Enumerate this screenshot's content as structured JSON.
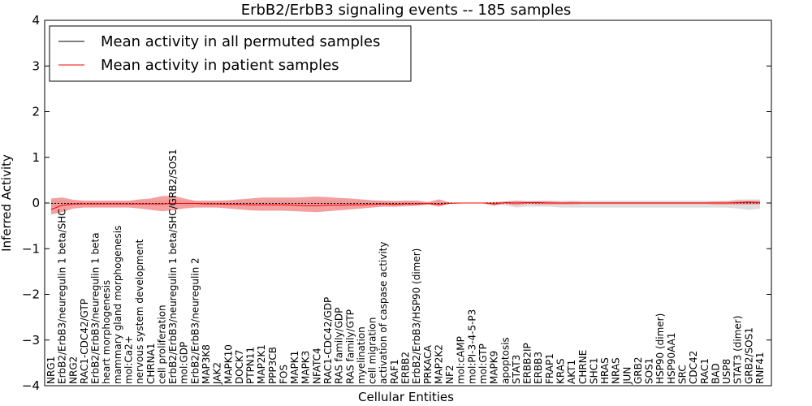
{
  "chart_data": {
    "type": "line",
    "title": "ErbB2/ErbB3 signaling events -- 185 samples",
    "xlabel": "Cellular Entities",
    "ylabel": "Inferred Activity",
    "ylim": [
      -4,
      4
    ],
    "yticks": [
      -4,
      -3,
      -2,
      -1,
      0,
      1,
      2,
      3,
      4
    ],
    "grid": false,
    "legend_position": "top-left",
    "categories": [
      "NRG1",
      "ErbB2/ErbB3/neuregulin 1 beta/SHC",
      "NRG2",
      "RAC1-CDC42/GTP",
      "ErbB2/ErbB3/neuregulin 1 beta",
      "heart morphogenesis",
      "mammary gland morphogenesis",
      "mol:Ca2+",
      "nervous system development",
      "CHRNA1",
      "cell proliferation",
      "ErbB2/ErbB3/neuregulin 1 beta/SHC/GRB2/SOS1",
      "mol:GDP",
      "ErbB2/ErbB3/neuregulin 2",
      "MAP3K8",
      "JAK2",
      "MAPK10",
      "DOCK7",
      "PTPN11",
      "MAP2K1",
      "PPP3CB",
      "FOS",
      "MAPK1",
      "MAPK3",
      "NFATC4",
      "RAC1-CDC42/GDP",
      "RAS family/GDP",
      "RAS family/GTP",
      "myelination",
      "cell migration",
      "activation of caspase activity",
      "RAF1",
      "ERBB2",
      "ErbB2/ErbB3/HSP90 (dimer)",
      "PRKACA",
      "MAP2K2",
      "NF2",
      "mol:cAMP",
      "mol:PI-3-4-5-P3",
      "mol:GTP",
      "MAPK9",
      "apoptosis",
      "STAT3",
      "ERBB2IP",
      "ERBB3",
      "FRAP1",
      "KRAS",
      "AKT1",
      "CHRNE",
      "SHC1",
      "HRAS",
      "NRAS",
      "JUN",
      "GRB2",
      "SOS1",
      "HSP90 (dimer)",
      "HSP90AA1",
      "SRC",
      "CDC42",
      "RAC1",
      "BAD",
      "USP8",
      "STAT3 (dimer)",
      "GRB2/SOS1",
      "RNF41"
    ],
    "series": [
      {
        "name": "Mean activity in all permuted samples",
        "color": "#000000",
        "band_color": "#c8c8c8",
        "values": [
          -0.01,
          -0.01,
          -0.01,
          -0.01,
          -0.01,
          -0.01,
          -0.01,
          -0.01,
          -0.01,
          -0.01,
          -0.01,
          -0.01,
          -0.01,
          -0.01,
          -0.01,
          -0.01,
          -0.01,
          -0.01,
          -0.01,
          -0.01,
          -0.01,
          -0.01,
          -0.01,
          -0.01,
          -0.01,
          -0.01,
          -0.01,
          -0.01,
          -0.01,
          -0.01,
          -0.01,
          -0.01,
          -0.01,
          -0.01,
          -0.01,
          -0.01,
          0.0,
          0.0,
          0.0,
          0.0,
          0.0,
          0.0,
          0.0,
          0.0,
          0.0,
          0.0,
          0.0,
          0.0,
          0.0,
          0.0,
          0.0,
          0.0,
          0.0,
          0.0,
          0.0,
          0.0,
          0.0,
          0.0,
          0.0,
          0.0,
          0.0,
          0.0,
          0.0,
          0.0,
          0.0
        ],
        "upper": [
          0.05,
          0.05,
          0.05,
          0.05,
          0.05,
          0.05,
          0.05,
          0.05,
          0.05,
          0.05,
          0.05,
          0.05,
          0.05,
          0.05,
          0.05,
          0.05,
          0.05,
          0.05,
          0.05,
          0.05,
          0.05,
          0.05,
          0.05,
          0.05,
          0.05,
          0.05,
          0.05,
          0.05,
          0.05,
          0.05,
          0.05,
          0.05,
          0.05,
          0.05,
          0.02,
          0.02,
          0.01,
          0.01,
          0.01,
          0.01,
          0.01,
          0.03,
          0.05,
          0.05,
          0.05,
          0.05,
          0.05,
          0.05,
          0.05,
          0.05,
          0.05,
          0.05,
          0.05,
          0.05,
          0.05,
          0.05,
          0.05,
          0.05,
          0.05,
          0.05,
          0.05,
          0.05,
          0.08,
          0.08,
          0.08
        ],
        "lower": [
          -0.08,
          -0.08,
          -0.06,
          -0.06,
          -0.06,
          -0.06,
          -0.06,
          -0.06,
          -0.06,
          -0.06,
          -0.06,
          -0.06,
          -0.06,
          -0.06,
          -0.06,
          -0.06,
          -0.06,
          -0.06,
          -0.06,
          -0.06,
          -0.06,
          -0.06,
          -0.06,
          -0.06,
          -0.06,
          -0.06,
          -0.06,
          -0.06,
          -0.06,
          -0.06,
          -0.06,
          -0.08,
          -0.08,
          -0.06,
          -0.05,
          -0.03,
          -0.01,
          -0.01,
          -0.01,
          -0.01,
          -0.01,
          -0.05,
          -0.1,
          -0.08,
          -0.08,
          -0.08,
          -0.1,
          -0.1,
          -0.1,
          -0.1,
          -0.1,
          -0.1,
          -0.1,
          -0.1,
          -0.1,
          -0.1,
          -0.1,
          -0.1,
          -0.1,
          -0.1,
          -0.1,
          -0.1,
          -0.12,
          -0.15,
          -0.12
        ]
      },
      {
        "name": "Mean activity in patient samples",
        "color": "#ff0000",
        "band_color": "#f08080",
        "values": [
          -0.14,
          -0.05,
          -0.02,
          -0.02,
          -0.02,
          -0.02,
          -0.02,
          -0.02,
          -0.02,
          -0.02,
          -0.02,
          -0.01,
          -0.01,
          -0.01,
          -0.02,
          -0.02,
          -0.03,
          -0.03,
          -0.04,
          -0.04,
          -0.04,
          -0.04,
          -0.05,
          -0.06,
          -0.06,
          -0.05,
          -0.05,
          -0.04,
          -0.04,
          -0.03,
          -0.02,
          -0.03,
          -0.02,
          -0.02,
          -0.01,
          -0.03,
          -0.01,
          0.0,
          0.0,
          0.0,
          -0.02,
          0.01,
          0.0,
          0.01,
          0.01,
          0.0,
          0.0,
          0.0,
          0.0,
          0.0,
          0.0,
          0.0,
          0.0,
          0.0,
          0.0,
          0.0,
          0.0,
          0.0,
          0.0,
          0.0,
          0.0,
          0.0,
          0.01,
          0.02,
          0.01
        ],
        "upper": [
          0.1,
          0.12,
          0.07,
          0.05,
          0.05,
          0.05,
          0.05,
          0.05,
          0.08,
          0.1,
          0.15,
          0.16,
          0.1,
          0.05,
          0.05,
          0.05,
          0.06,
          0.08,
          0.1,
          0.12,
          0.12,
          0.12,
          0.12,
          0.13,
          0.14,
          0.13,
          0.11,
          0.1,
          0.08,
          0.06,
          0.05,
          0.04,
          0.05,
          0.05,
          0.02,
          0.08,
          0.01,
          0.01,
          0.01,
          0.01,
          0.02,
          0.03,
          0.05,
          0.03,
          0.04,
          0.04,
          0.02,
          0.03,
          0.02,
          0.02,
          0.02,
          0.02,
          0.02,
          0.02,
          0.02,
          0.02,
          0.02,
          0.02,
          0.02,
          0.02,
          0.03,
          0.03,
          0.05,
          0.05,
          0.05
        ],
        "lower": [
          -0.25,
          -0.2,
          -0.12,
          -0.1,
          -0.1,
          -0.1,
          -0.1,
          -0.1,
          -0.12,
          -0.15,
          -0.18,
          -0.16,
          -0.12,
          -0.1,
          -0.1,
          -0.1,
          -0.12,
          -0.14,
          -0.16,
          -0.17,
          -0.17,
          -0.17,
          -0.18,
          -0.19,
          -0.2,
          -0.18,
          -0.16,
          -0.14,
          -0.12,
          -0.1,
          -0.08,
          -0.08,
          -0.06,
          -0.06,
          -0.03,
          -0.08,
          -0.01,
          -0.01,
          -0.01,
          -0.01,
          -0.06,
          -0.02,
          -0.05,
          -0.02,
          -0.03,
          -0.03,
          -0.03,
          -0.03,
          -0.02,
          -0.02,
          -0.02,
          -0.02,
          -0.02,
          -0.02,
          -0.02,
          -0.02,
          -0.02,
          -0.02,
          -0.02,
          -0.02,
          -0.03,
          -0.03,
          -0.03,
          -0.03,
          -0.03
        ]
      }
    ]
  }
}
